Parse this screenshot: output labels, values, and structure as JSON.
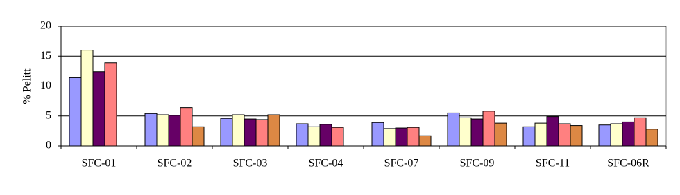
{
  "chart_data": {
    "type": "bar",
    "y_label": "% Pelitt",
    "categories": [
      "SFC-01",
      "SFC-02",
      "SFC-03",
      "SFC-04",
      "SFC-07",
      "SFC-09",
      "SFC-11",
      "SFC-06R"
    ],
    "series": [
      {
        "color": "#9999ff",
        "values": [
          11.4,
          5.4,
          4.6,
          3.7,
          3.9,
          5.5,
          3.2,
          3.5
        ]
      },
      {
        "color": "#ffffcc",
        "values": [
          16.0,
          5.2,
          5.2,
          3.2,
          2.9,
          4.7,
          3.8,
          3.7
        ]
      },
      {
        "color": "#660066",
        "values": [
          12.4,
          5.1,
          4.5,
          3.6,
          3.0,
          4.5,
          4.9,
          4.0
        ]
      },
      {
        "color": "#ff8080",
        "values": [
          13.9,
          6.4,
          4.4,
          3.1,
          3.1,
          5.8,
          3.7,
          4.7
        ]
      },
      {
        "color": "#dd8844",
        "values": [
          null,
          3.2,
          5.2,
          null,
          1.7,
          3.8,
          3.4,
          2.8
        ]
      }
    ],
    "ylim": [
      0,
      20
    ],
    "yticks": [
      0,
      5,
      10,
      15,
      20
    ],
    "grid": true
  }
}
